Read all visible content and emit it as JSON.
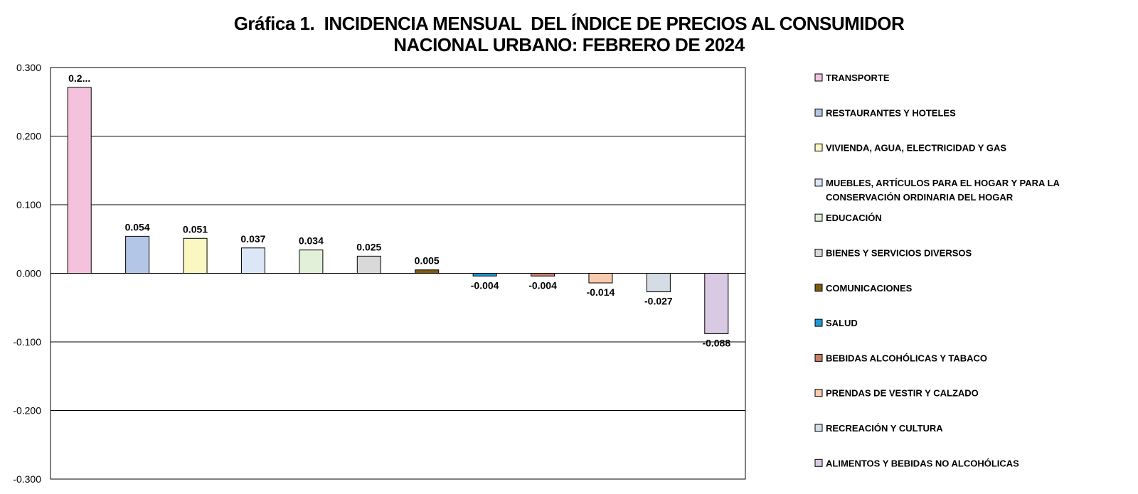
{
  "title_lines": [
    "Gráfica 1.  INCIDENCIA MENSUAL  DEL ÍNDICE DE PRECIOS AL CONSUMIDOR",
    "NACIONAL URBANO: FEBRERO DE 2024"
  ],
  "chart_data": {
    "type": "bar",
    "title": "Gráfica 1.  INCIDENCIA MENSUAL  DEL ÍNDICE DE PRECIOS AL CONSUMIDOR NACIONAL URBANO: FEBRERO DE 2024",
    "ylim": [
      -0.3,
      0.3
    ],
    "yticks": [
      0.3,
      0.2,
      0.1,
      0.0,
      -0.1,
      -0.2,
      -0.3
    ],
    "ytick_labels": [
      "0.300",
      "0.200",
      "0.100",
      "0.000",
      "-0.100",
      "-0.200",
      "-0.300"
    ],
    "grid": true,
    "legend_position": "right",
    "categories": [
      "TRANSPORTE",
      "RESTAURANTES Y HOTELES",
      "VIVIENDA, AGUA, ELECTRICIDAD Y GAS",
      "MUEBLES, ARTÍCULOS PARA EL HOGAR Y PARA LA CONSERVACIÓN ORDINARIA DEL HOGAR",
      "EDUCACIÓN",
      "BIENES Y SERVICIOS DIVERSOS",
      "COMUNICACIONES",
      "SALUD",
      "BEBIDAS ALCOHÓLICAS Y TABACO",
      "PRENDAS DE VESTIR Y CALZADO",
      "RECREACIÓN Y CULTURA",
      "ALIMENTOS Y BEBIDAS NO ALCOHÓLICAS"
    ],
    "legend_lines": [
      [
        "TRANSPORTE"
      ],
      [
        "RESTAURANTES Y HOTELES"
      ],
      [
        "VIVIENDA, AGUA, ELECTRICIDAD Y GAS"
      ],
      [
        "MUEBLES, ARTÍCULOS PARA EL HOGAR Y PARA LA",
        "CONSERVACIÓN ORDINARIA DEL HOGAR"
      ],
      [
        "EDUCACIÓN"
      ],
      [
        "BIENES Y SERVICIOS DIVERSOS"
      ],
      [
        "COMUNICACIONES"
      ],
      [
        "SALUD"
      ],
      [
        "BEBIDAS ALCOHÓLICAS Y TABACO"
      ],
      [
        "PRENDAS DE VESTIR Y CALZADO"
      ],
      [
        "RECREACIÓN Y CULTURA"
      ],
      [
        "ALIMENTOS Y BEBIDAS NO ALCOHÓLICAS"
      ]
    ],
    "values": [
      0.271,
      0.054,
      0.051,
      0.037,
      0.034,
      0.025,
      0.005,
      -0.004,
      -0.004,
      -0.014,
      -0.027,
      -0.088
    ],
    "data_labels": [
      "0.2...",
      "0.054",
      "0.051",
      "0.037",
      "0.034",
      "0.025",
      "0.005",
      "-0.004",
      "-0.004",
      "-0.014",
      "-0.027",
      "-0.088"
    ],
    "colors": [
      "#f5c2dd",
      "#b4c6e7",
      "#fbf7c0",
      "#dbe7f6",
      "#e2efd9",
      "#d9d9d9",
      "#7f5a10",
      "#1f9ad6",
      "#c87f6c",
      "#f9cbad",
      "#d6dce5",
      "#d9c9e3"
    ]
  }
}
